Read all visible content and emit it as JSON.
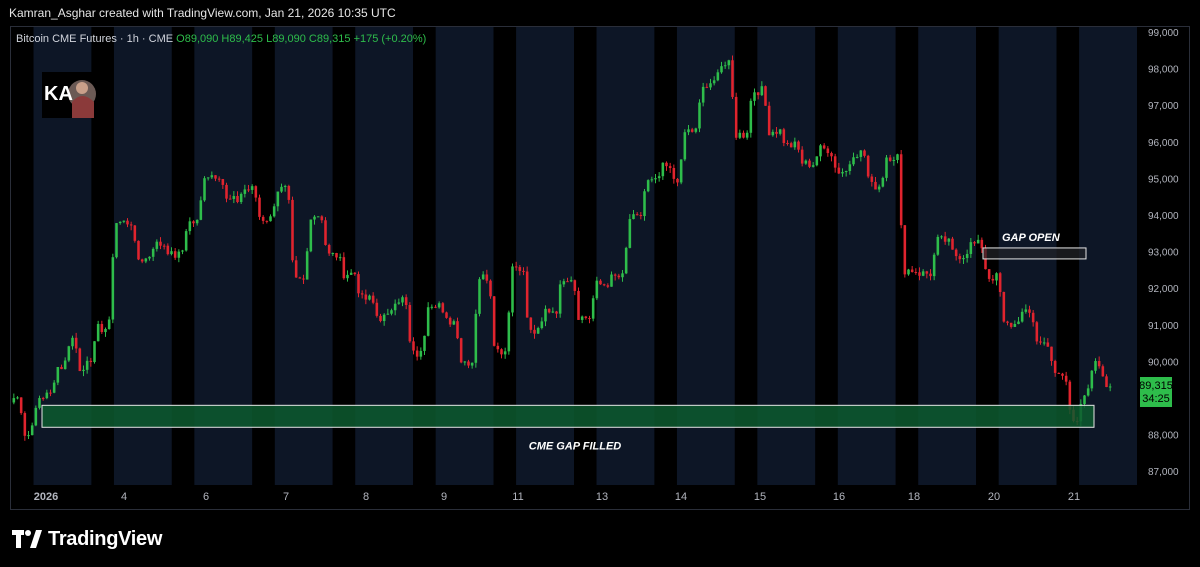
{
  "header": {
    "attribution": "Kamran_Asghar created with TradingView.com, Jan 21, 2026 10:35 UTC"
  },
  "legend": {
    "symbol": "Bitcoin CME Futures · 1h · CME",
    "open": "O89,090",
    "high": "H89,425",
    "low": "L89,090",
    "close": "C89,315",
    "change": "+175 (+0.20%)"
  },
  "logo": {
    "badge_text": "KA"
  },
  "brand": {
    "name": "TradingView"
  },
  "colors": {
    "up": "#2ebd4b",
    "down": "#e0242e",
    "session_band": "#0d1626",
    "gap_fill": "#0d5a2f",
    "axis_text": "#b2b5be",
    "price_tag": "#2ebd4b"
  },
  "price_label": {
    "price": "89,315",
    "countdown": "34:25"
  },
  "annotations": {
    "gap_open": "GAP OPEN",
    "gap_filled": "CME GAP FILLED"
  },
  "chart_data": {
    "type": "candlestick",
    "title": "Bitcoin CME Futures · 1h · CME",
    "y_axis": {
      "ticks": [
        99000,
        98000,
        97000,
        96000,
        95000,
        94000,
        93000,
        92000,
        91000,
        90000,
        88000,
        87000
      ],
      "tick_labels": [
        "99,000",
        "98,000",
        "97,000",
        "96,000",
        "95,000",
        "94,000",
        "93,000",
        "92,000",
        "91,000",
        "90,000",
        "88,000",
        "87,000"
      ],
      "range": [
        86800,
        99300
      ]
    },
    "x_axis": {
      "tick_labels": [
        "2026",
        "4",
        "6",
        "7",
        "8",
        "9",
        "11",
        "13",
        "14",
        "15",
        "16",
        "18",
        "20",
        "21"
      ]
    },
    "price_path": [
      [
        89000,
        2
      ],
      [
        88000,
        2
      ],
      [
        88900,
        2
      ],
      [
        89200,
        2
      ],
      [
        89900,
        2
      ],
      [
        90600,
        2
      ],
      [
        89500,
        1
      ],
      [
        90100,
        2
      ],
      [
        90900,
        3
      ],
      [
        93800,
        4
      ],
      [
        92800,
        3
      ],
      [
        93200,
        3
      ],
      [
        92900,
        3
      ],
      [
        93800,
        3
      ],
      [
        95100,
        4
      ],
      [
        94400,
        3
      ],
      [
        94700,
        3
      ],
      [
        93900,
        3
      ],
      [
        94700,
        3
      ],
      [
        92200,
        3
      ],
      [
        94000,
        3
      ],
      [
        92900,
        3
      ],
      [
        92400,
        3
      ],
      [
        91700,
        3
      ],
      [
        91200,
        3
      ],
      [
        91700,
        3
      ],
      [
        90200,
        3
      ],
      [
        91600,
        3
      ],
      [
        91100,
        3
      ],
      [
        90000,
        3
      ],
      [
        92300,
        3
      ],
      [
        90300,
        3
      ],
      [
        92600,
        3
      ],
      [
        90800,
        3
      ],
      [
        91400,
        3
      ],
      [
        92300,
        3
      ],
      [
        91200,
        3
      ],
      [
        92100,
        3
      ],
      [
        92300,
        3
      ],
      [
        93900,
        3
      ],
      [
        94900,
        3
      ],
      [
        95300,
        2
      ],
      [
        95000,
        2
      ],
      [
        96300,
        3
      ],
      [
        97500,
        3
      ],
      [
        98100,
        3
      ],
      [
        96200,
        3
      ],
      [
        97400,
        3
      ],
      [
        96300,
        3
      ],
      [
        95900,
        3
      ],
      [
        95400,
        3
      ],
      [
        95800,
        3
      ],
      [
        95200,
        3
      ],
      [
        95700,
        3
      ],
      [
        94800,
        3
      ],
      [
        95600,
        3
      ],
      [
        92500,
        3
      ],
      [
        92400,
        3
      ],
      [
        93300,
        3
      ],
      [
        92900,
        3
      ],
      [
        93200,
        3
      ],
      [
        92300,
        3
      ],
      [
        91000,
        3
      ],
      [
        91300,
        3
      ],
      [
        90500,
        3
      ],
      [
        89600,
        3
      ],
      [
        88400,
        2
      ],
      [
        89100,
        2
      ],
      [
        89900,
        2
      ],
      [
        89315,
        2
      ]
    ],
    "session_bands": [
      [
        0,
        3
      ],
      [
        14,
        6
      ],
      [
        15,
        1
      ],
      [
        16,
        1
      ],
      [
        17,
        3
      ]
    ],
    "gap_open_zone": {
      "from": 92800,
      "to": 93100,
      "label": "GAP OPEN"
    },
    "gap_filled_zone": {
      "from": 88200,
      "to": 88800,
      "label": "CME GAP FILLED"
    },
    "last_price": 89315,
    "open": 89090,
    "high": 89425,
    "low": 89090,
    "close": 89315,
    "change": 175,
    "change_pct": 0.2
  }
}
